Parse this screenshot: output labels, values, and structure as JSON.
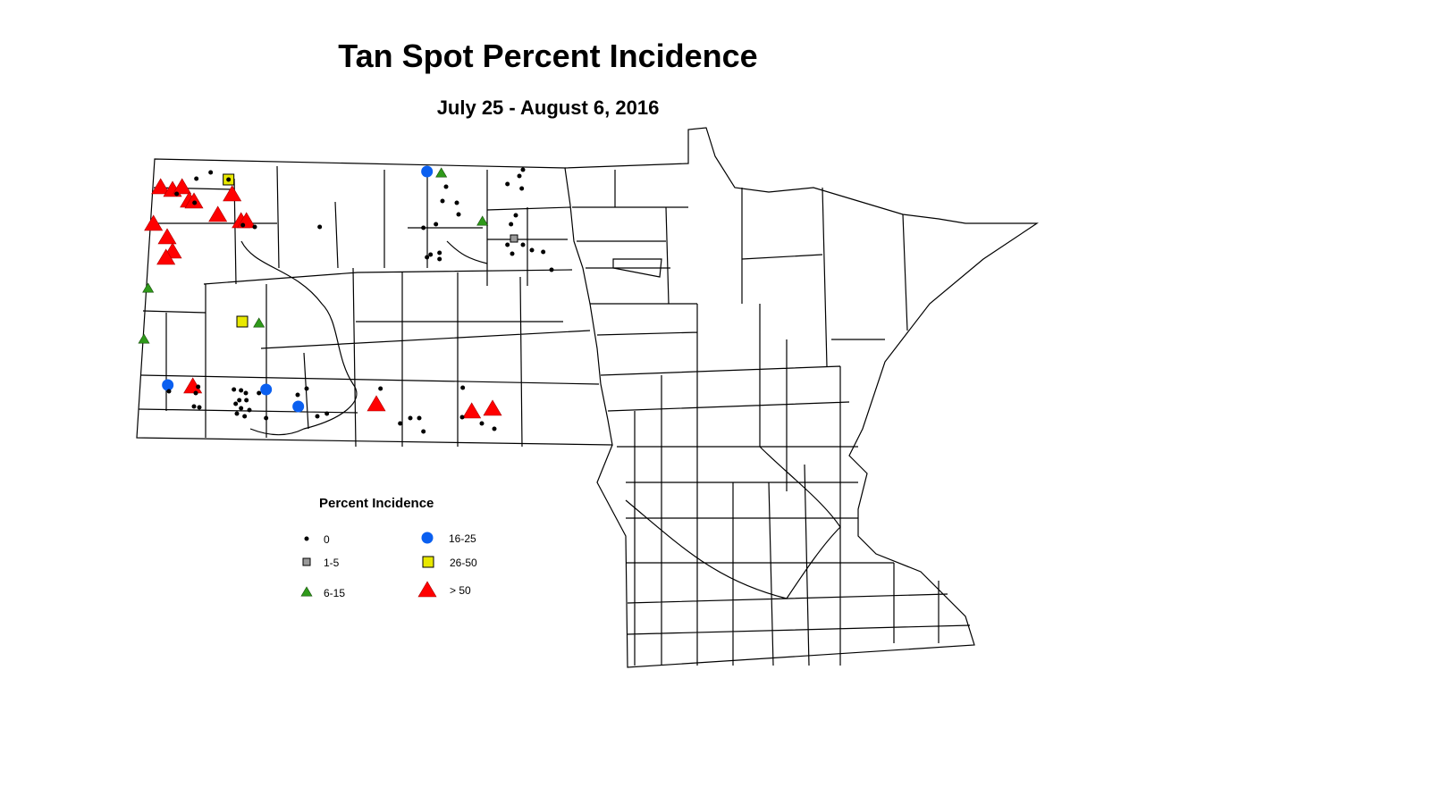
{
  "title": "Tan Spot Percent Incidence",
  "subtitle": "July 25 - August 6, 2016",
  "legend": {
    "title": "Percent Incidence",
    "classes": [
      {
        "key": "c0",
        "label": "0",
        "symbol": "dot",
        "color": "#000000"
      },
      {
        "key": "c1",
        "label": "1-5",
        "symbol": "square-small",
        "color": "#9a9a9a"
      },
      {
        "key": "c2",
        "label": "6-15",
        "symbol": "triangle-small",
        "color": "#2f9a1a"
      },
      {
        "key": "c3",
        "label": "16-25",
        "symbol": "circle",
        "color": "#0a5ff0"
      },
      {
        "key": "c4",
        "label": "26-50",
        "symbol": "square",
        "color": "#e8e800"
      },
      {
        "key": "c5",
        "label": "> 50",
        "symbol": "triangle",
        "color": "#ff0000"
      }
    ]
  },
  "observations": [
    {
      "lon": -103.66,
      "lat": 48.75,
      "cls": "c5"
    },
    {
      "lon": -103.46,
      "lat": 48.72,
      "cls": "c5"
    },
    {
      "lon": -103.3,
      "lat": 48.75,
      "cls": "c5"
    },
    {
      "lon": -103.18,
      "lat": 48.6,
      "cls": "c5"
    },
    {
      "lon": -103.1,
      "lat": 48.59,
      "cls": "c5"
    },
    {
      "lon": -102.7,
      "lat": 48.44,
      "cls": "c5"
    },
    {
      "lon": -102.46,
      "lat": 48.67,
      "cls": "c5"
    },
    {
      "lon": -102.31,
      "lat": 48.37,
      "cls": "c5"
    },
    {
      "lon": -102.22,
      "lat": 48.37,
      "cls": "c5"
    },
    {
      "lon": -103.78,
      "lat": 48.34,
      "cls": "c5"
    },
    {
      "lon": -103.55,
      "lat": 48.19,
      "cls": "c5"
    },
    {
      "lon": -103.46,
      "lat": 48.03,
      "cls": "c5"
    },
    {
      "lon": -103.57,
      "lat": 47.96,
      "cls": "c5"
    },
    {
      "lon": -103.12,
      "lat": 46.52,
      "cls": "c5"
    },
    {
      "lon": -100.04,
      "lat": 46.32,
      "cls": "c5"
    },
    {
      "lon": -98.44,
      "lat": 46.24,
      "cls": "c5"
    },
    {
      "lon": -98.09,
      "lat": 46.27,
      "cls": "c5"
    },
    {
      "lon": -99.19,
      "lat": 48.93,
      "cls": "c3"
    },
    {
      "lon": -103.54,
      "lat": 46.54,
      "cls": "c3"
    },
    {
      "lon": -101.89,
      "lat": 46.49,
      "cls": "c3"
    },
    {
      "lon": -101.35,
      "lat": 46.3,
      "cls": "c3"
    },
    {
      "lon": -102.52,
      "lat": 48.84,
      "cls": "c4"
    },
    {
      "lon": -102.29,
      "lat": 47.25,
      "cls": "c4"
    },
    {
      "lon": -98.95,
      "lat": 48.91,
      "cls": "c2"
    },
    {
      "lon": -98.26,
      "lat": 48.37,
      "cls": "c2"
    },
    {
      "lon": -103.87,
      "lat": 47.62,
      "cls": "c2"
    },
    {
      "lon": -103.94,
      "lat": 47.05,
      "cls": "c2"
    },
    {
      "lon": -102.01,
      "lat": 47.23,
      "cls": "c2"
    },
    {
      "lon": -97.73,
      "lat": 48.18,
      "cls": "c1"
    },
    {
      "lon": -102.82,
      "lat": 48.92,
      "cls": "c0"
    },
    {
      "lon": -103.06,
      "lat": 48.85,
      "cls": "c0"
    },
    {
      "lon": -102.52,
      "lat": 48.84,
      "cls": "c0"
    },
    {
      "lon": -103.39,
      "lat": 48.68,
      "cls": "c0"
    },
    {
      "lon": -103.09,
      "lat": 48.58,
      "cls": "c0"
    },
    {
      "lon": -102.28,
      "lat": 48.33,
      "cls": "c0"
    },
    {
      "lon": -102.08,
      "lat": 48.31,
      "cls": "c0"
    },
    {
      "lon": -100.99,
      "lat": 48.31,
      "cls": "c0"
    },
    {
      "lon": -98.87,
      "lat": 48.76,
      "cls": "c0"
    },
    {
      "lon": -98.93,
      "lat": 48.6,
      "cls": "c0"
    },
    {
      "lon": -98.69,
      "lat": 48.58,
      "cls": "c0"
    },
    {
      "lon": -98.66,
      "lat": 48.45,
      "cls": "c0"
    },
    {
      "lon": -99.25,
      "lat": 48.3,
      "cls": "c0"
    },
    {
      "lon": -99.04,
      "lat": 48.34,
      "cls": "c0"
    },
    {
      "lon": -97.84,
      "lat": 48.79,
      "cls": "c0"
    },
    {
      "lon": -97.58,
      "lat": 48.95,
      "cls": "c0"
    },
    {
      "lon": -97.64,
      "lat": 48.88,
      "cls": "c0"
    },
    {
      "lon": -97.6,
      "lat": 48.74,
      "cls": "c0"
    },
    {
      "lon": -97.7,
      "lat": 48.44,
      "cls": "c0"
    },
    {
      "lon": -97.78,
      "lat": 48.34,
      "cls": "c0"
    },
    {
      "lon": -97.84,
      "lat": 48.11,
      "cls": "c0"
    },
    {
      "lon": -97.58,
      "lat": 48.11,
      "cls": "c0"
    },
    {
      "lon": -97.76,
      "lat": 48.01,
      "cls": "c0"
    },
    {
      "lon": -97.43,
      "lat": 48.05,
      "cls": "c0"
    },
    {
      "lon": -97.24,
      "lat": 48.03,
      "cls": "c0"
    },
    {
      "lon": -97.1,
      "lat": 47.83,
      "cls": "c0"
    },
    {
      "lon": -99.19,
      "lat": 47.97,
      "cls": "c0"
    },
    {
      "lon": -99.13,
      "lat": 48.0,
      "cls": "c0"
    },
    {
      "lon": -98.98,
      "lat": 48.02,
      "cls": "c0"
    },
    {
      "lon": -98.98,
      "lat": 47.95,
      "cls": "c0"
    },
    {
      "lon": -103.52,
      "lat": 46.47,
      "cls": "c0"
    },
    {
      "lon": -103.03,
      "lat": 46.52,
      "cls": "c0"
    },
    {
      "lon": -103.07,
      "lat": 46.45,
      "cls": "c0"
    },
    {
      "lon": -103.1,
      "lat": 46.3,
      "cls": "c0"
    },
    {
      "lon": -103.01,
      "lat": 46.29,
      "cls": "c0"
    },
    {
      "lon": -102.43,
      "lat": 46.49,
      "cls": "c0"
    },
    {
      "lon": -102.31,
      "lat": 46.48,
      "cls": "c0"
    },
    {
      "lon": -102.23,
      "lat": 46.45,
      "cls": "c0"
    },
    {
      "lon": -102.34,
      "lat": 46.37,
      "cls": "c0"
    },
    {
      "lon": -102.22,
      "lat": 46.37,
      "cls": "c0"
    },
    {
      "lon": -102.4,
      "lat": 46.33,
      "cls": "c0"
    },
    {
      "lon": -102.31,
      "lat": 46.28,
      "cls": "c0"
    },
    {
      "lon": -102.17,
      "lat": 46.26,
      "cls": "c0"
    },
    {
      "lon": -102.38,
      "lat": 46.22,
      "cls": "c0"
    },
    {
      "lon": -102.25,
      "lat": 46.19,
      "cls": "c0"
    },
    {
      "lon": -102.01,
      "lat": 46.45,
      "cls": "c0"
    },
    {
      "lon": -101.89,
      "lat": 46.17,
      "cls": "c0"
    },
    {
      "lon": -101.36,
      "lat": 46.43,
      "cls": "c0"
    },
    {
      "lon": -101.21,
      "lat": 46.5,
      "cls": "c0"
    },
    {
      "lon": -101.03,
      "lat": 46.19,
      "cls": "c0"
    },
    {
      "lon": -100.87,
      "lat": 46.22,
      "cls": "c0"
    },
    {
      "lon": -99.97,
      "lat": 46.5,
      "cls": "c0"
    },
    {
      "lon": -98.59,
      "lat": 46.51,
      "cls": "c0"
    },
    {
      "lon": -99.64,
      "lat": 46.11,
      "cls": "c0"
    },
    {
      "lon": -99.47,
      "lat": 46.17,
      "cls": "c0"
    },
    {
      "lon": -99.32,
      "lat": 46.17,
      "cls": "c0"
    },
    {
      "lon": -99.25,
      "lat": 46.02,
      "cls": "c0"
    },
    {
      "lon": -98.6,
      "lat": 46.18,
      "cls": "c0"
    },
    {
      "lon": -98.27,
      "lat": 46.11,
      "cls": "c0"
    },
    {
      "lon": -98.06,
      "lat": 46.05,
      "cls": "c0"
    }
  ]
}
